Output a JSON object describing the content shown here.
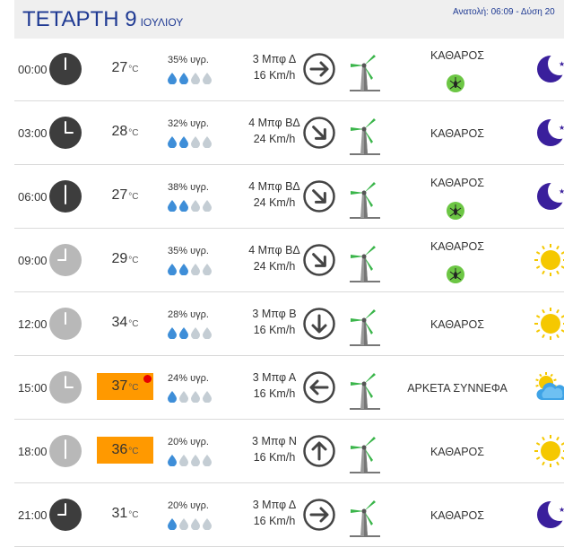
{
  "header": {
    "day": "ΤΕΤΑΡΤΗ 9",
    "month": "ΙΟΥΛΙΟΥ",
    "sun": "Ανατολή: 06:09 - Δύση 20"
  },
  "units": {
    "temp": "°C"
  },
  "rows": [
    {
      "time": "00:00",
      "temp": "27",
      "hot": false,
      "humidity": "35% υγρ.",
      "drops": 2,
      "wind_bft": "3 Μπφ Δ",
      "wind_kmh": "16 Km/h",
      "wind_dir": "Δ",
      "condition": "ΚΑΘΑΡΟΣ",
      "mosquito": true,
      "icon": "moon-icon",
      "night": true
    },
    {
      "time": "03:00",
      "temp": "28",
      "hot": false,
      "humidity": "32% υγρ.",
      "drops": 2,
      "wind_bft": "4 Μπφ ΒΔ",
      "wind_kmh": "24 Km/h",
      "wind_dir": "ΒΔ",
      "condition": "ΚΑΘΑΡΟΣ",
      "mosquito": false,
      "icon": "moon-icon",
      "night": true
    },
    {
      "time": "06:00",
      "temp": "27",
      "hot": false,
      "humidity": "38% υγρ.",
      "drops": 2,
      "wind_bft": "4 Μπφ ΒΔ",
      "wind_kmh": "24 Km/h",
      "wind_dir": "ΒΔ",
      "condition": "ΚΑΘΑΡΟΣ",
      "mosquito": true,
      "icon": "moon-icon",
      "night": true
    },
    {
      "time": "09:00",
      "temp": "29",
      "hot": false,
      "humidity": "35% υγρ.",
      "drops": 2,
      "wind_bft": "4 Μπφ ΒΔ",
      "wind_kmh": "24 Km/h",
      "wind_dir": "ΒΔ",
      "condition": "ΚΑΘΑΡΟΣ",
      "mosquito": true,
      "icon": "sun-icon",
      "night": false
    },
    {
      "time": "12:00",
      "temp": "34",
      "hot": false,
      "humidity": "28% υγρ.",
      "drops": 2,
      "wind_bft": "3 Μπφ Β",
      "wind_kmh": "16 Km/h",
      "wind_dir": "Β",
      "condition": "ΚΑΘΑΡΟΣ",
      "mosquito": false,
      "icon": "sun-icon",
      "night": false
    },
    {
      "time": "15:00",
      "temp": "37",
      "hot": true,
      "humidity": "24% υγρ.",
      "drops": 1,
      "wind_bft": "3 Μπφ Α",
      "wind_kmh": "16 Km/h",
      "wind_dir": "Α",
      "condition": "ΑΡΚΕΤΑ ΣΥΝΝΕΦΑ",
      "mosquito": false,
      "icon": "sun-cloud-icon",
      "night": false
    },
    {
      "time": "18:00",
      "temp": "36",
      "hot": true,
      "humidity": "20% υγρ.",
      "drops": 1,
      "wind_bft": "3 Μπφ Ν",
      "wind_kmh": "16 Km/h",
      "wind_dir": "Ν",
      "condition": "ΚΑΘΑΡΟΣ",
      "mosquito": false,
      "icon": "sun-icon",
      "night": false
    },
    {
      "time": "21:00",
      "temp": "31",
      "hot": false,
      "humidity": "20% υγρ.",
      "drops": 1,
      "wind_bft": "3 Μπφ Δ",
      "wind_kmh": "16 Km/h",
      "wind_dir": "Δ",
      "condition": "ΚΑΘΑΡΟΣ",
      "mosquito": false,
      "icon": "moon-icon",
      "night": true
    }
  ],
  "colors": {
    "title": "#1f3a93",
    "hot_bg": "#ff9900",
    "hot_dot": "#e60000",
    "clock_night": "#3d3d3d",
    "clock_day": "#b8b8b8",
    "drop_full": "#3e8ed8",
    "drop_empty": "#c4cdd4",
    "moon": "#3a1f9c",
    "sun": "#f5c800",
    "turbine_blade": "#3ab54a",
    "mosquito_bg": "#6cc644"
  }
}
